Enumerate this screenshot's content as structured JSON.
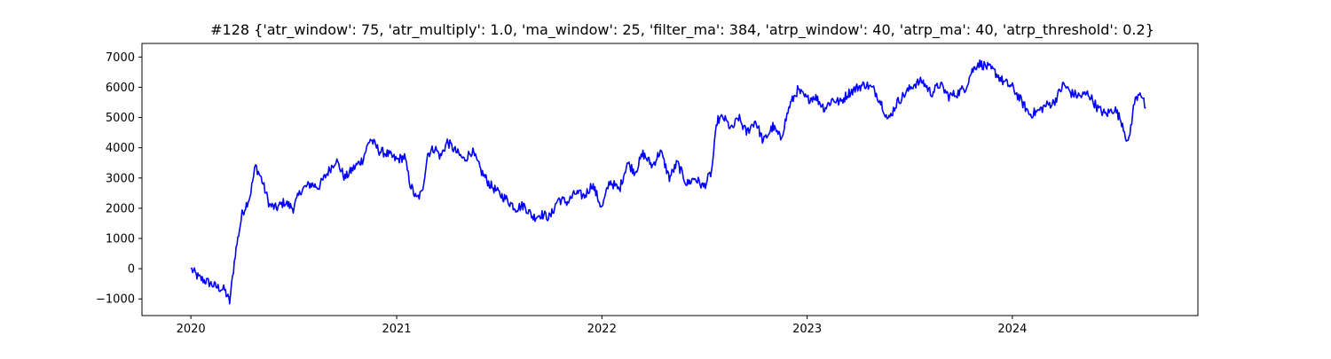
{
  "chart_data": {
    "type": "line",
    "title": "#128 {'atr_window': 75, 'atr_multiply': 1.0, 'ma_window': 25, 'filter_ma': 384, 'atrp_window': 40, 'atrp_ma': 40, 'atrp_threshold': 0.2}",
    "xlabel": "",
    "ylabel": "",
    "grid": false,
    "legend": "none",
    "line_color": "#0000ff",
    "xlim": [
      "2019-10-06",
      "2024-11-26"
    ],
    "ylim": [
      -1550,
      7450
    ],
    "x_ticks": [
      {
        "date": "2020-01-01",
        "label": "2020"
      },
      {
        "date": "2021-01-01",
        "label": "2021"
      },
      {
        "date": "2022-01-01",
        "label": "2022"
      },
      {
        "date": "2023-01-01",
        "label": "2023"
      },
      {
        "date": "2024-01-01",
        "label": "2024"
      }
    ],
    "y_ticks": [
      {
        "value": -1000,
        "label": "−1000"
      },
      {
        "value": 0,
        "label": "0"
      },
      {
        "value": 1000,
        "label": "1000"
      },
      {
        "value": 2000,
        "label": "2000"
      },
      {
        "value": 3000,
        "label": "3000"
      },
      {
        "value": 4000,
        "label": "4000"
      },
      {
        "value": 5000,
        "label": "5000"
      },
      {
        "value": 6000,
        "label": "6000"
      },
      {
        "value": 7000,
        "label": "7000"
      }
    ],
    "series": [
      {
        "points": [
          [
            "2020-01-01",
            0
          ],
          [
            "2020-01-15",
            -300
          ],
          [
            "2020-02-01",
            -450
          ],
          [
            "2020-02-15",
            -600
          ],
          [
            "2020-03-01",
            -700
          ],
          [
            "2020-03-10",
            -1100
          ],
          [
            "2020-03-20",
            500
          ],
          [
            "2020-04-01",
            1800
          ],
          [
            "2020-04-15",
            2400
          ],
          [
            "2020-04-25",
            3400
          ],
          [
            "2020-05-05",
            3000
          ],
          [
            "2020-05-20",
            2100
          ],
          [
            "2020-06-01",
            2000
          ],
          [
            "2020-06-15",
            2200
          ],
          [
            "2020-07-01",
            2000
          ],
          [
            "2020-07-15",
            2600
          ],
          [
            "2020-08-01",
            2800
          ],
          [
            "2020-08-15",
            2700
          ],
          [
            "2020-09-01",
            3200
          ],
          [
            "2020-09-15",
            3600
          ],
          [
            "2020-10-01",
            3000
          ],
          [
            "2020-10-15",
            3300
          ],
          [
            "2020-11-01",
            3600
          ],
          [
            "2020-11-15",
            4300
          ],
          [
            "2020-12-01",
            3900
          ],
          [
            "2020-12-15",
            3800
          ],
          [
            "2021-01-01",
            3600
          ],
          [
            "2021-01-15",
            3700
          ],
          [
            "2021-01-25",
            2800
          ],
          [
            "2021-02-05",
            2300
          ],
          [
            "2021-02-15",
            2500
          ],
          [
            "2021-02-25",
            3800
          ],
          [
            "2021-03-10",
            4000
          ],
          [
            "2021-03-20",
            3700
          ],
          [
            "2021-04-01",
            4200
          ],
          [
            "2021-04-15",
            3900
          ],
          [
            "2021-05-01",
            3600
          ],
          [
            "2021-05-15",
            3900
          ],
          [
            "2021-06-01",
            3200
          ],
          [
            "2021-06-15",
            2800
          ],
          [
            "2021-07-01",
            2500
          ],
          [
            "2021-07-15",
            2300
          ],
          [
            "2021-08-01",
            2000
          ],
          [
            "2021-08-15",
            2100
          ],
          [
            "2021-09-01",
            1700
          ],
          [
            "2021-09-15",
            1800
          ],
          [
            "2021-10-01",
            1700
          ],
          [
            "2021-10-15",
            2300
          ],
          [
            "2021-11-01",
            2200
          ],
          [
            "2021-11-15",
            2500
          ],
          [
            "2021-12-01",
            2400
          ],
          [
            "2021-12-15",
            2800
          ],
          [
            "2022-01-01",
            2000
          ],
          [
            "2022-01-15",
            2900
          ],
          [
            "2022-02-01",
            2600
          ],
          [
            "2022-02-15",
            3500
          ],
          [
            "2022-03-01",
            3200
          ],
          [
            "2022-03-15",
            3800
          ],
          [
            "2022-04-01",
            3400
          ],
          [
            "2022-04-15",
            3900
          ],
          [
            "2022-05-01",
            3000
          ],
          [
            "2022-05-15",
            3500
          ],
          [
            "2022-06-01",
            2800
          ],
          [
            "2022-06-15",
            3000
          ],
          [
            "2022-07-01",
            2700
          ],
          [
            "2022-07-15",
            3200
          ],
          [
            "2022-07-25",
            4900
          ],
          [
            "2022-08-05",
            5000
          ],
          [
            "2022-08-20",
            4600
          ],
          [
            "2022-09-01",
            5000
          ],
          [
            "2022-09-15",
            4500
          ],
          [
            "2022-10-01",
            4900
          ],
          [
            "2022-10-15",
            4200
          ],
          [
            "2022-11-01",
            4700
          ],
          [
            "2022-11-15",
            4300
          ],
          [
            "2022-12-01",
            5400
          ],
          [
            "2022-12-15",
            5900
          ],
          [
            "2023-01-01",
            5600
          ],
          [
            "2023-01-15",
            5700
          ],
          [
            "2023-02-01",
            5300
          ],
          [
            "2023-02-15",
            5600
          ],
          [
            "2023-03-01",
            5500
          ],
          [
            "2023-03-15",
            5800
          ],
          [
            "2023-04-01",
            6000
          ],
          [
            "2023-04-15",
            6100
          ],
          [
            "2023-05-01",
            5900
          ],
          [
            "2023-05-15",
            5400
          ],
          [
            "2023-05-25",
            4900
          ],
          [
            "2023-06-10",
            5500
          ],
          [
            "2023-06-25",
            5800
          ],
          [
            "2023-07-10",
            6100
          ],
          [
            "2023-07-25",
            6200
          ],
          [
            "2023-08-10",
            5800
          ],
          [
            "2023-08-25",
            6100
          ],
          [
            "2023-09-10",
            5700
          ],
          [
            "2023-09-25",
            5800
          ],
          [
            "2023-10-10",
            6000
          ],
          [
            "2023-10-20",
            6500
          ],
          [
            "2023-11-01",
            6800
          ],
          [
            "2023-11-15",
            6700
          ],
          [
            "2023-12-01",
            6500
          ],
          [
            "2023-12-15",
            6200
          ],
          [
            "2024-01-01",
            6000
          ],
          [
            "2024-01-15",
            5600
          ],
          [
            "2024-02-01",
            5100
          ],
          [
            "2024-02-15",
            5200
          ],
          [
            "2024-03-01",
            5400
          ],
          [
            "2024-03-15",
            5500
          ],
          [
            "2024-04-01",
            6100
          ],
          [
            "2024-04-15",
            5800
          ],
          [
            "2024-05-01",
            5700
          ],
          [
            "2024-05-15",
            5800
          ],
          [
            "2024-06-01",
            5300
          ],
          [
            "2024-06-15",
            5100
          ],
          [
            "2024-07-01",
            5300
          ],
          [
            "2024-07-15",
            4800
          ],
          [
            "2024-07-25",
            4100
          ],
          [
            "2024-08-05",
            5500
          ],
          [
            "2024-08-15",
            5900
          ],
          [
            "2024-08-25",
            5300
          ]
        ]
      }
    ]
  }
}
